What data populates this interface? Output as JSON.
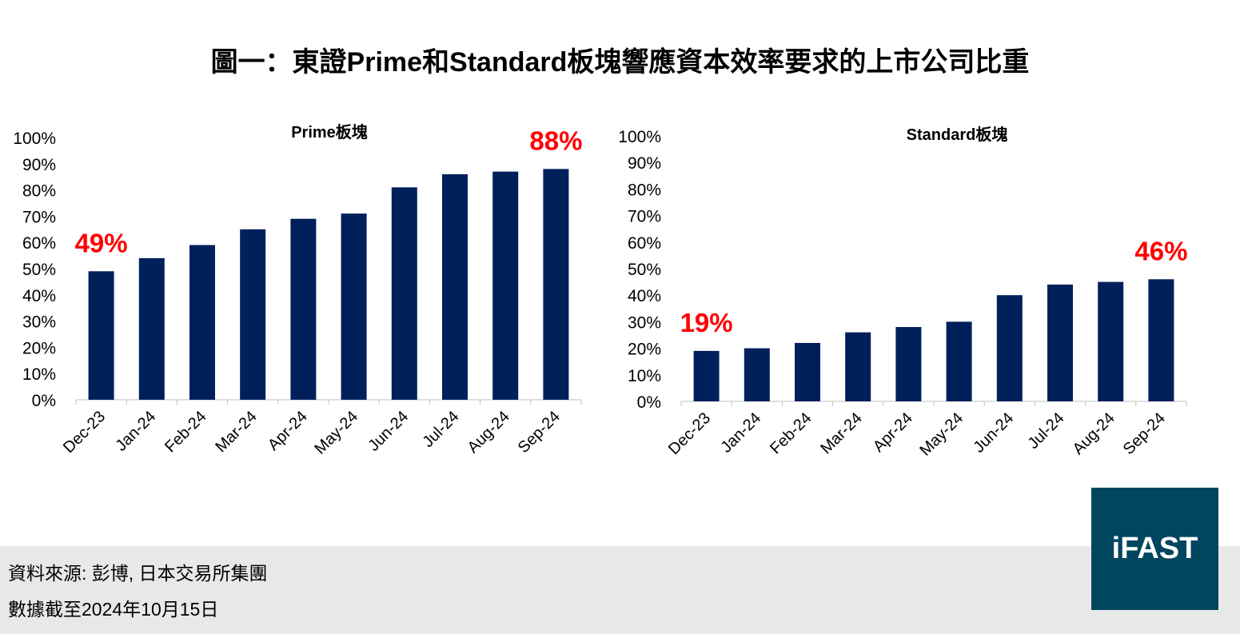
{
  "title": "圖一：東證Prime和Standard板塊響應資本效率要求的上市公司比重",
  "footer": {
    "source": "資料來源: 彭博, 日本交易所集團",
    "date": "數據截至2024年10月15日"
  },
  "logo": "iFAST",
  "colors": {
    "bar": "#00205b",
    "annotation": "#ff0000",
    "logo_bg": "#00465e"
  },
  "chart_data": [
    {
      "type": "bar",
      "title": "Prime板塊",
      "categories": [
        "Dec-23",
        "Jan-24",
        "Feb-24",
        "Mar-24",
        "Apr-24",
        "May-24",
        "Jun-24",
        "Jul-24",
        "Aug-24",
        "Sep-24"
      ],
      "values": [
        49,
        54,
        59,
        65,
        69,
        71,
        81,
        86,
        87,
        88
      ],
      "ylim": [
        0,
        100
      ],
      "yticks": [
        "0%",
        "10%",
        "20%",
        "30%",
        "40%",
        "50%",
        "60%",
        "70%",
        "80%",
        "90%",
        "100%"
      ],
      "annotations": [
        {
          "category": "Dec-23",
          "text": "49%"
        },
        {
          "category": "Sep-24",
          "text": "88%"
        }
      ],
      "grid": false
    },
    {
      "type": "bar",
      "title": "Standard板塊",
      "categories": [
        "Dec-23",
        "Jan-24",
        "Feb-24",
        "Mar-24",
        "Apr-24",
        "May-24",
        "Jun-24",
        "Jul-24",
        "Aug-24",
        "Sep-24"
      ],
      "values": [
        19,
        20,
        22,
        26,
        28,
        30,
        40,
        44,
        45,
        46
      ],
      "ylim": [
        0,
        100
      ],
      "yticks": [
        "0%",
        "10%",
        "20%",
        "30%",
        "40%",
        "50%",
        "60%",
        "70%",
        "80%",
        "90%",
        "100%"
      ],
      "annotations": [
        {
          "category": "Dec-23",
          "text": "19%"
        },
        {
          "category": "Sep-24",
          "text": "46%"
        }
      ],
      "grid": false
    }
  ]
}
